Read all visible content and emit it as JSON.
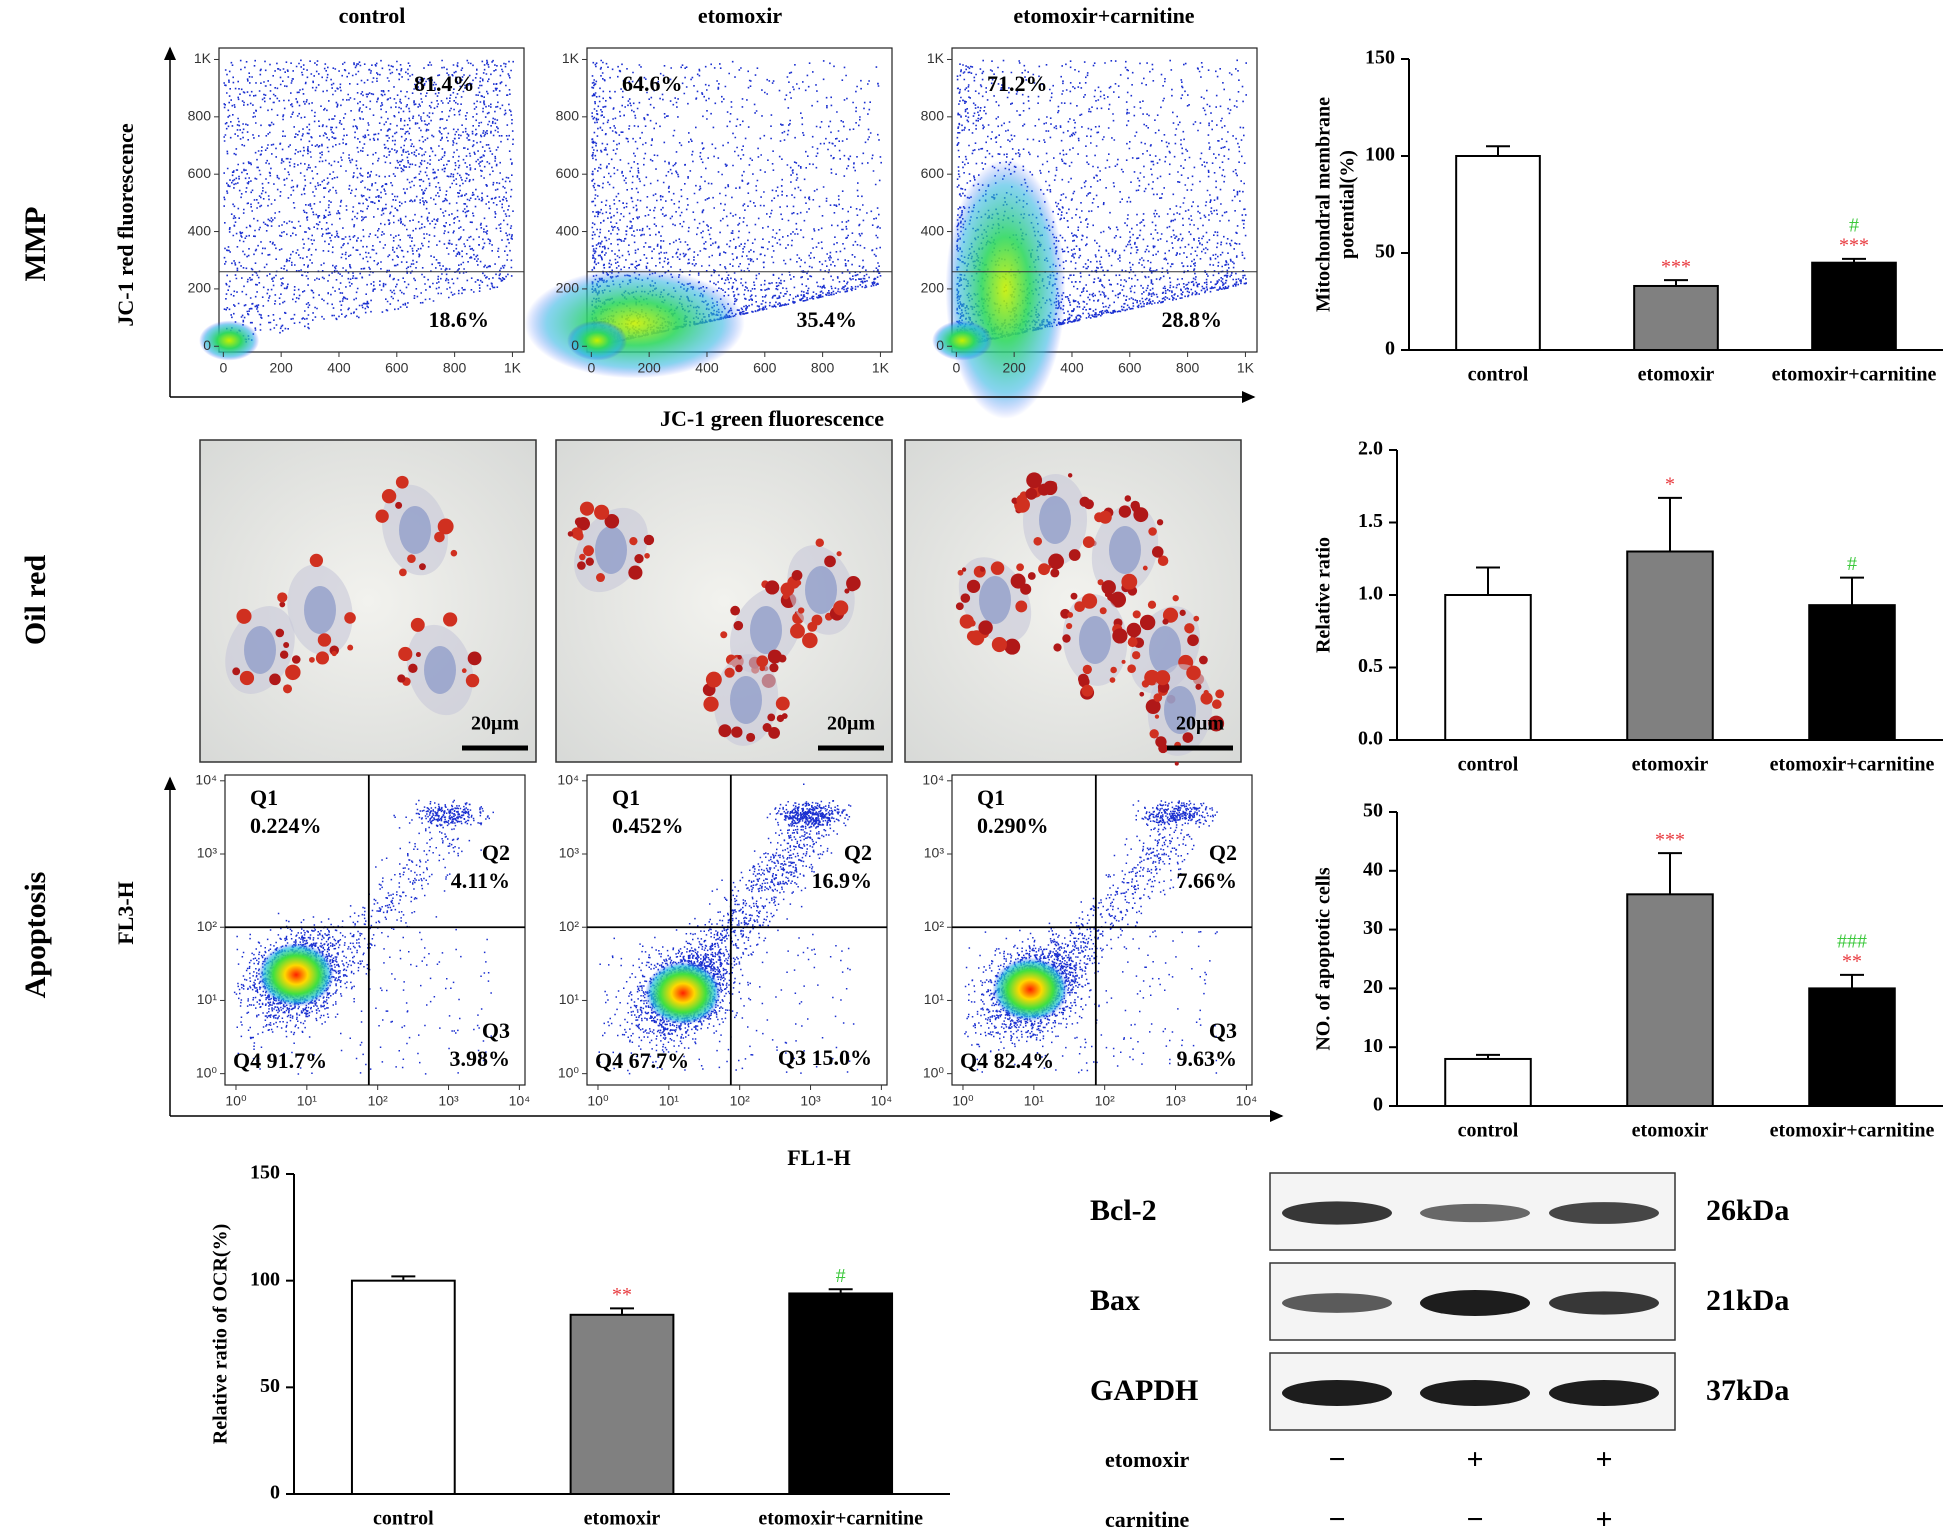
{
  "row_labels": {
    "mmp": "MMP",
    "oil_red": "Oil red",
    "apoptosis": "Apoptosis"
  },
  "columns": [
    "control",
    "etomoxir",
    "etomoxir+carnitine"
  ],
  "mmp_flow": {
    "ylabel": "JC-1 red fluorescence",
    "xlabel": "JC-1 green fluorescence",
    "xlim": [
      -15,
      1040
    ],
    "ylim": [
      -20,
      1040
    ],
    "xticks": [
      0,
      200,
      400,
      600,
      800,
      {
        "value": 1000,
        "label": "1K"
      }
    ],
    "yticks": [
      0,
      200,
      400,
      600,
      800,
      {
        "value": 1000,
        "label": "1K"
      }
    ],
    "gate_y": 260,
    "panels": [
      {
        "upper": "81.4%",
        "lower": "18.6%"
      },
      {
        "upper": "64.6%",
        "lower": "35.4%"
      },
      {
        "upper": "71.2%",
        "lower": "28.8%"
      }
    ]
  },
  "oil_red": {
    "scale_bar": "20μm"
  },
  "apoptosis_flow": {
    "ylabel": "FL3-H",
    "xlabel": "FL1-H",
    "log": true,
    "xlim": [
      0.7,
      12000
    ],
    "ylim": [
      0.7,
      12000
    ],
    "xticks": [
      {
        "value": 1,
        "label": "10⁰"
      },
      {
        "value": 10,
        "label": "10¹"
      },
      {
        "value": 100,
        "label": "10²"
      },
      {
        "value": 1000,
        "label": "10³"
      },
      {
        "value": 10000,
        "label": "10⁴"
      }
    ],
    "yticks": [
      {
        "value": 1,
        "label": "10⁰"
      },
      {
        "value": 10,
        "label": "10¹"
      },
      {
        "value": 100,
        "label": "10²"
      },
      {
        "value": 1000,
        "label": "10³"
      },
      {
        "value": 10000,
        "label": "10⁴"
      }
    ],
    "gate_x": 75,
    "gate_y": 100,
    "panels": [
      {
        "q1": [
          "Q1",
          "0.224%"
        ],
        "q2": [
          "Q2",
          "4.11%"
        ],
        "q3": [
          "Q3",
          "3.98%"
        ],
        "q4": [
          "Q4 91.7%"
        ]
      },
      {
        "q1": [
          "Q1",
          "0.452%"
        ],
        "q2": [
          "Q2",
          "16.9%"
        ],
        "q3": [
          "Q3 15.0%"
        ],
        "q4": [
          "Q4 67.7%"
        ]
      },
      {
        "q1": [
          "Q1",
          "0.290%"
        ],
        "q2": [
          "Q2",
          "7.66%"
        ],
        "q3": [
          "Q3",
          "9.63%"
        ],
        "q4": [
          "Q4 82.4%"
        ]
      }
    ]
  },
  "chart_data": [
    {
      "type": "bar",
      "ylabel": [
        "Mitochondral membrane",
        "potential(%)"
      ],
      "categories": [
        "control",
        "etomoxir",
        "etomoxir+carnitine"
      ],
      "values": [
        100,
        33,
        45
      ],
      "errors": [
        5,
        3,
        2
      ],
      "colors": [
        "#ffffff",
        "#808080",
        "#000000"
      ],
      "ylim": [
        0,
        150
      ],
      "yticks": [
        0,
        50,
        100,
        150
      ],
      "annotations": [
        null,
        [
          {
            "text": "***",
            "color": "#e8383d"
          }
        ],
        [
          {
            "text": "***",
            "color": "#e8383d"
          },
          {
            "text": "#",
            "color": "#3cc83c"
          }
        ]
      ]
    },
    {
      "type": "bar",
      "ylabel": [
        "Relative ratio"
      ],
      "categories": [
        "control",
        "etomoxir",
        "etomoxir+carnitine"
      ],
      "values": [
        1.0,
        1.3,
        0.93
      ],
      "errors": [
        0.19,
        0.37,
        0.19
      ],
      "colors": [
        "#ffffff",
        "#808080",
        "#000000"
      ],
      "ylim": [
        0,
        2
      ],
      "yticks": [
        {
          "value": 0,
          "label": "0.0"
        },
        0.5,
        {
          "value": 1,
          "label": "1.0"
        },
        1.5,
        {
          "value": 2,
          "label": "2.0"
        }
      ],
      "annotations": [
        null,
        [
          {
            "text": "*",
            "color": "#e8383d"
          }
        ],
        [
          {
            "text": "#",
            "color": "#3cc83c"
          }
        ]
      ]
    },
    {
      "type": "bar",
      "ylabel": [
        "NO. of apoptotic cells"
      ],
      "categories": [
        "control",
        "etomoxir",
        "etomoxir+carnitine"
      ],
      "values": [
        8,
        36,
        20
      ],
      "errors": [
        0.7,
        7,
        2.3
      ],
      "colors": [
        "#ffffff",
        "#808080",
        "#000000"
      ],
      "ylim": [
        0,
        50
      ],
      "yticks": [
        0,
        10,
        20,
        30,
        40,
        50
      ],
      "annotations": [
        null,
        [
          {
            "text": "***",
            "color": "#e8383d"
          }
        ],
        [
          {
            "text": "**",
            "color": "#e8383d"
          },
          {
            "text": "###",
            "color": "#3cc83c"
          }
        ]
      ]
    },
    {
      "type": "bar",
      "ylabel": [
        "Relative ratio of OCR(%)"
      ],
      "categories": [
        "control",
        "etomoxir",
        "etomoxir+carnitine"
      ],
      "values": [
        100,
        84,
        94
      ],
      "errors": [
        2,
        3,
        2
      ],
      "colors": [
        "#ffffff",
        "#808080",
        "#000000"
      ],
      "ylim": [
        0,
        150
      ],
      "yticks": [
        0,
        50,
        100,
        150
      ],
      "annotations": [
        null,
        [
          {
            "text": "**",
            "color": "#e8383d"
          }
        ],
        [
          {
            "text": "#",
            "color": "#3cc83c"
          }
        ]
      ]
    }
  ],
  "western": {
    "rows": [
      {
        "label": "Bcl-2",
        "size": "26kDa"
      },
      {
        "label": "Bax",
        "size": "21kDa"
      },
      {
        "label": "GAPDH",
        "size": "37kDa"
      }
    ],
    "treatments": [
      {
        "label": "etomoxir",
        "signs": [
          "−",
          "+",
          "+"
        ]
      },
      {
        "label": "carnitine",
        "signs": [
          "−",
          "−",
          "+"
        ]
      }
    ]
  }
}
